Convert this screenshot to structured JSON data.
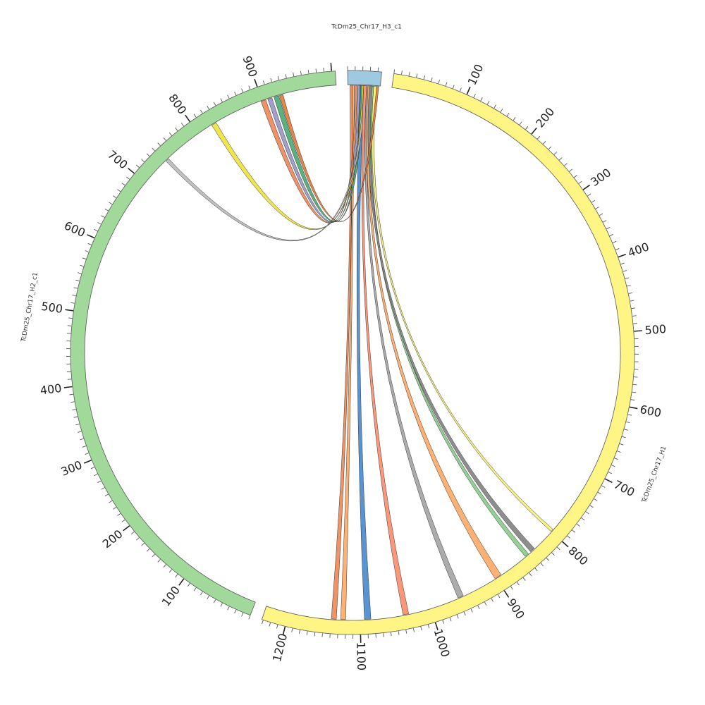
{
  "chart_data": {
    "type": "circos",
    "chromosomes": [
      {
        "name": "TcDm25_Chr17_H3_c1",
        "length": 45,
        "color": "#9ecae1",
        "tick_labels": []
      },
      {
        "name": "TcDm25_Chr17_H1",
        "length": 1232,
        "color": "#fff584",
        "tick_labels": [
          "100",
          "200",
          "300",
          "400",
          "500",
          "600",
          "700",
          "800",
          "900",
          "1000",
          "1100",
          "1200"
        ]
      },
      {
        "name": "TcDm25_Chr17_H2_c1",
        "length": 1005,
        "color": "#a1d99b",
        "tick_labels": [
          "100",
          "200",
          "300",
          "400",
          "500",
          "600",
          "700",
          "800",
          "900"
        ]
      }
    ],
    "links": [
      {
        "a": "TcDm25_Chr17_H3_c1",
        "a_start": 3,
        "a_end": 6,
        "b": "TcDm25_Chr17_H1",
        "b_start": 1133,
        "b_end": 1140,
        "color": "#f08c5c"
      },
      {
        "a": "TcDm25_Chr17_H3_c1",
        "a_start": 6,
        "a_end": 9,
        "b": "TcDm25_Chr17_H1",
        "b_start": 1120,
        "b_end": 1127,
        "color": "#fdae6b"
      },
      {
        "a": "TcDm25_Chr17_H3_c1",
        "a_start": 16,
        "a_end": 22,
        "b": "TcDm25_Chr17_H1",
        "b_start": 1085,
        "b_end": 1094,
        "color": "#4f8ecf"
      },
      {
        "a": "TcDm25_Chr17_H3_c1",
        "a_start": 18,
        "a_end": 22,
        "b": "TcDm25_Chr17_H2_c1",
        "b_start": 917,
        "b_end": 924,
        "color": "#4eb07a"
      },
      {
        "a": "TcDm25_Chr17_H3_c1",
        "a_start": 14,
        "a_end": 17,
        "b": "TcDm25_Chr17_H2_c1",
        "b_start": 908,
        "b_end": 914,
        "color": "#9e9ac8"
      },
      {
        "a": "TcDm25_Chr17_H3_c1",
        "a_start": 10,
        "a_end": 13,
        "b": "TcDm25_Chr17_H2_c1",
        "b_start": 898,
        "b_end": 905,
        "color": "#f08c5c"
      },
      {
        "a": "TcDm25_Chr17_H3_c1",
        "a_start": 20,
        "a_end": 23,
        "b": "TcDm25_Chr17_H2_c1",
        "b_start": 822,
        "b_end": 829,
        "color": "#f0e442"
      },
      {
        "a": "TcDm25_Chr17_H3_c1",
        "a_start": 22,
        "a_end": 25,
        "b": "TcDm25_Chr17_H2_c1",
        "b_start": 741,
        "b_end": 746,
        "color": "#bdbdbd"
      },
      {
        "a": "TcDm25_Chr17_H3_c1",
        "a_start": 22,
        "a_end": 26,
        "b": "TcDm25_Chr17_H1",
        "b_start": 1032,
        "b_end": 1040,
        "color": "#fc9272"
      },
      {
        "a": "TcDm25_Chr17_H3_c1",
        "a_start": 26,
        "a_end": 30,
        "b": "TcDm25_Chr17_H1",
        "b_start": 952,
        "b_end": 960,
        "color": "#a8a8a8"
      },
      {
        "a": "TcDm25_Chr17_H3_c1",
        "a_start": 28,
        "a_end": 32,
        "b": "TcDm25_Chr17_H1",
        "b_start": 892,
        "b_end": 902,
        "color": "#fdae6b"
      },
      {
        "a": "TcDm25_Chr17_H3_c1",
        "a_start": 32,
        "a_end": 36,
        "b": "TcDm25_Chr17_H1",
        "b_start": 844,
        "b_end": 850,
        "color": "#8dce8d"
      },
      {
        "a": "TcDm25_Chr17_H3_c1",
        "a_start": 30,
        "a_end": 34,
        "b": "TcDm25_Chr17_H1",
        "b_start": 833,
        "b_end": 840,
        "color": "#888888"
      },
      {
        "a": "TcDm25_Chr17_H3_c1",
        "a_start": 36,
        "a_end": 40,
        "b": "TcDm25_Chr17_H1",
        "b_start": 796,
        "b_end": 800,
        "color": "#f5f07a"
      },
      {
        "a": "TcDm25_Chr17_H3_c1",
        "a_start": 40,
        "a_end": 43,
        "b": "TcDm25_Chr17_H2_c1",
        "b_start": 925,
        "b_end": 930,
        "color": "#e6803c"
      }
    ]
  }
}
